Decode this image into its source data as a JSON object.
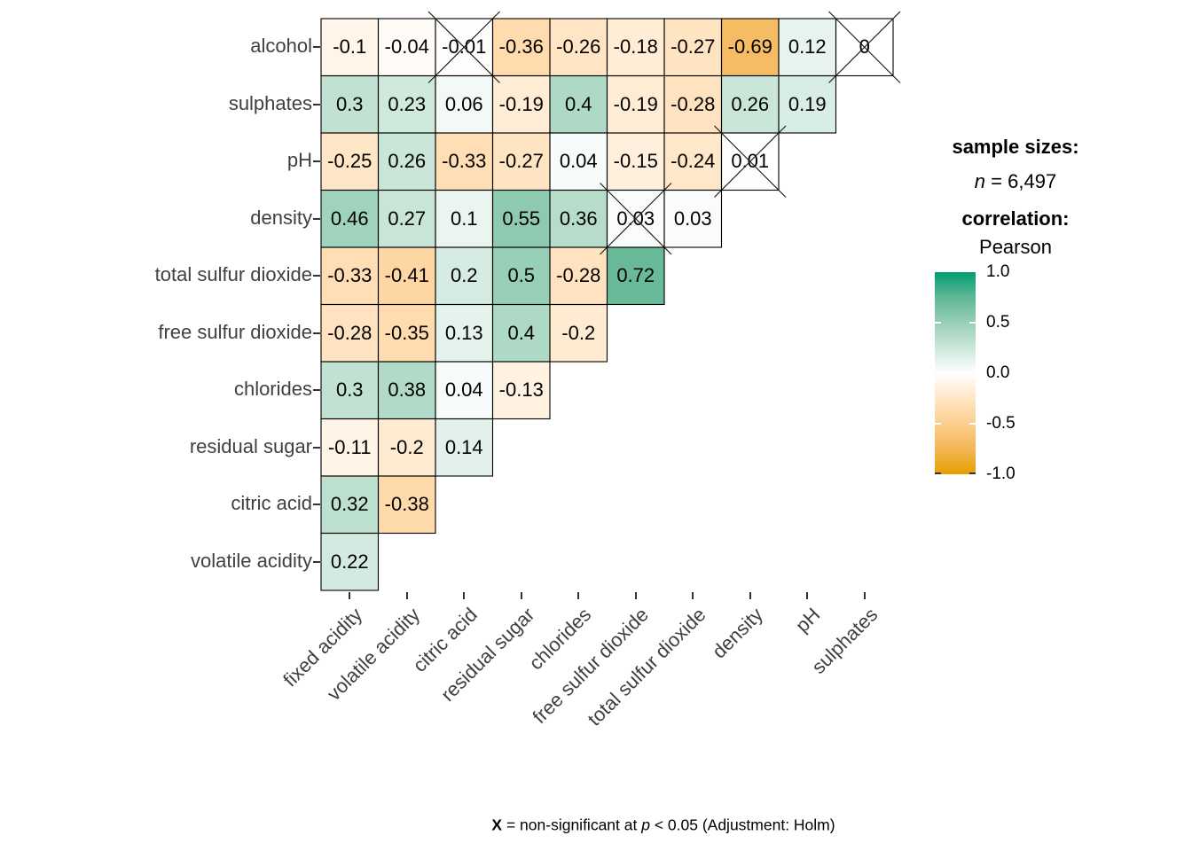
{
  "legend": {
    "sample_sizes_label": "sample sizes:",
    "n_italic": "n",
    "n_value": " = 6,497",
    "correlation_label": "correlation:",
    "method": "Pearson",
    "ticks": [
      "1.0",
      "0.5",
      "0.0",
      "-0.5",
      "-1.0"
    ]
  },
  "caption": {
    "x_bold": "X",
    "mid": " = non-significant at ",
    "p_italic": "p",
    "suffix": " < 0.05 (Adjustment: Holm)"
  },
  "chart_data": {
    "type": "heatmap",
    "title": "",
    "correlation_method": "Pearson",
    "sample_size_text": "n = 6,497",
    "non_significant_note": "X = non-significant at p < 0.05 (Adjustment: Holm)",
    "x_categories": [
      "fixed acidity",
      "volatile acidity",
      "citric acid",
      "residual sugar",
      "chlorides",
      "free sulfur dioxide",
      "total sulfur dioxide",
      "density",
      "pH",
      "sulphates"
    ],
    "y_categories": [
      "alcohol",
      "sulphates",
      "pH",
      "density",
      "total sulfur dioxide",
      "free sulfur dioxide",
      "chlorides",
      "residual sugar",
      "citric acid",
      "volatile acidity"
    ],
    "rows": [
      {
        "label": "alcohol",
        "values": [
          -0.1,
          -0.04,
          -0.01,
          -0.36,
          -0.26,
          -0.18,
          -0.27,
          -0.69,
          0.12,
          0
        ],
        "crossed_cols": [
          2,
          9
        ]
      },
      {
        "label": "sulphates",
        "values": [
          0.3,
          0.23,
          0.06,
          -0.19,
          0.4,
          -0.19,
          -0.28,
          0.26,
          0.19
        ],
        "crossed_cols": []
      },
      {
        "label": "pH",
        "values": [
          -0.25,
          0.26,
          -0.33,
          -0.27,
          0.04,
          -0.15,
          -0.24,
          0.01
        ],
        "crossed_cols": [
          7
        ]
      },
      {
        "label": "density",
        "values": [
          0.46,
          0.27,
          0.1,
          0.55,
          0.36,
          0.03,
          0.03
        ],
        "crossed_cols": [
          5
        ]
      },
      {
        "label": "total sulfur dioxide",
        "values": [
          -0.33,
          -0.41,
          0.2,
          0.5,
          -0.28,
          0.72
        ],
        "crossed_cols": []
      },
      {
        "label": "free sulfur dioxide",
        "values": [
          -0.28,
          -0.35,
          0.13,
          0.4,
          -0.2
        ],
        "crossed_cols": []
      },
      {
        "label": "chlorides",
        "values": [
          0.3,
          0.38,
          0.04,
          -0.13
        ],
        "crossed_cols": []
      },
      {
        "label": "residual sugar",
        "values": [
          -0.11,
          -0.2,
          0.14
        ],
        "crossed_cols": []
      },
      {
        "label": "citric acid",
        "values": [
          0.32,
          -0.38
        ],
        "crossed_cols": []
      },
      {
        "label": "volatile acidity",
        "values": [
          0.22
        ],
        "crossed_cols": []
      }
    ],
    "colorscale": {
      "high": "#009E73",
      "mid": "#FFFFFF",
      "low": "#E69F00",
      "domain": [
        -1,
        1
      ],
      "legend_position": "right"
    },
    "axis_label_color": "#404040",
    "cell_border_color": "#000000"
  }
}
